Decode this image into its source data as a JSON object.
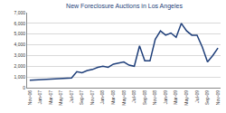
{
  "chart_data": {
    "type": "line",
    "title": "New Foreclosure Auctions in Los Angeles",
    "categories": [
      "Nov-06",
      null,
      "Jan-07",
      null,
      "Mar-07",
      null,
      "May-07",
      null,
      "Jul-07",
      null,
      "Sep-07",
      null,
      "Nov-07",
      null,
      "Jan-08",
      null,
      "Mar-08",
      null,
      "May-08",
      null,
      "Jul-08",
      null,
      "Sep-08",
      null,
      "Nov-08",
      null,
      "Jan-09",
      null,
      "Mar-09",
      null,
      "May-09",
      null,
      "Jul-09",
      null,
      "Sep-09",
      null,
      "Nov-09"
    ],
    "values": [
      700,
      720,
      750,
      780,
      800,
      830,
      850,
      870,
      900,
      1500,
      1400,
      1600,
      1700,
      1900,
      2000,
      1900,
      2200,
      2300,
      2400,
      2100,
      2000,
      3900,
      2500,
      2500,
      4500,
      5300,
      4900,
      5100,
      4700,
      6000,
      5300,
      4900,
      4900,
      3800,
      2400,
      3000,
      3700
    ],
    "color": "#1f3f7a",
    "ylim": [
      0,
      7000
    ],
    "yticks": [
      0,
      {
        "value": 1000,
        "label": "1,000"
      },
      {
        "value": 2000,
        "label": "2,000"
      },
      {
        "value": 3000,
        "label": "3,000"
      },
      {
        "value": 4000,
        "label": "4,000"
      },
      {
        "value": 5000,
        "label": "5,000"
      },
      {
        "value": 6000,
        "label": "6,000"
      },
      {
        "value": 7000,
        "label": "7,000"
      }
    ],
    "grid": true
  }
}
